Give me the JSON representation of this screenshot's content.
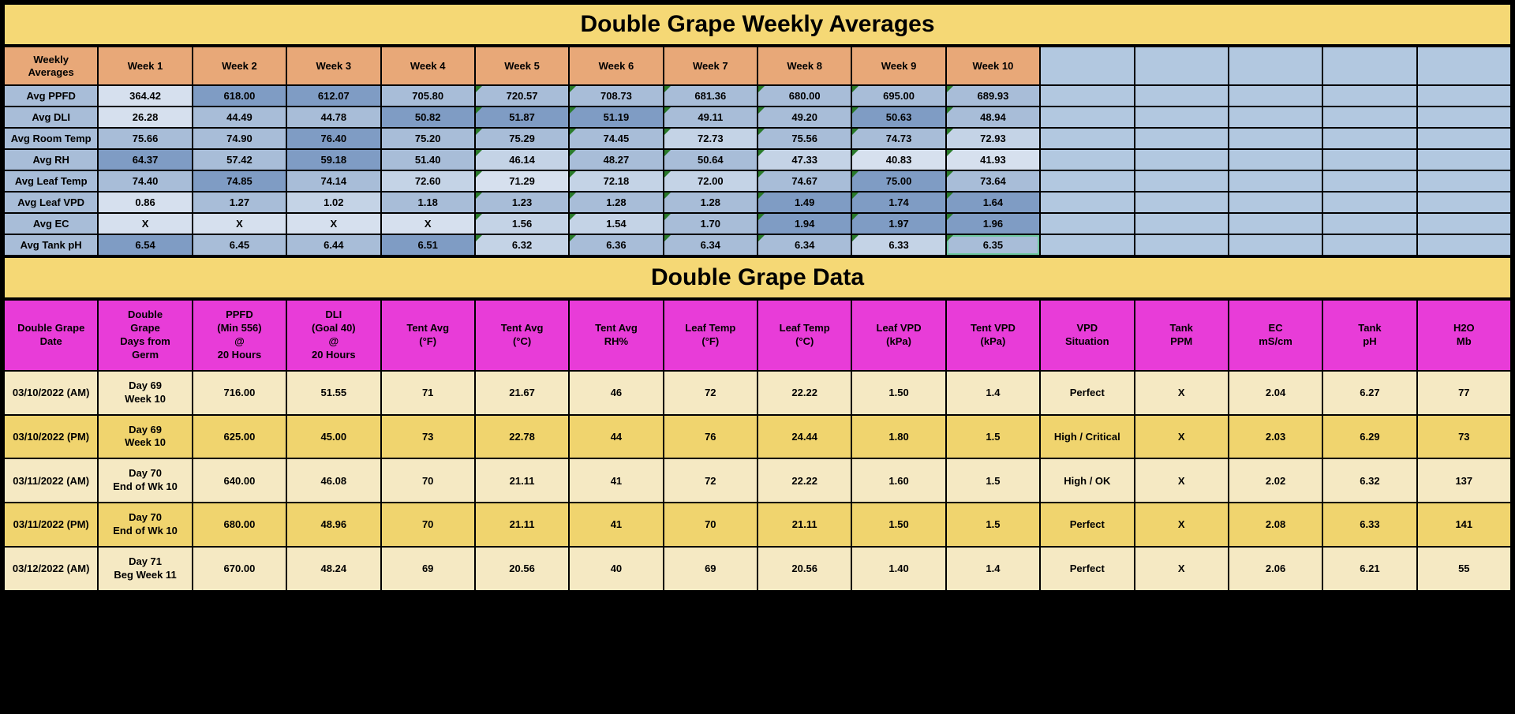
{
  "titles": {
    "weekly": "Double Grape Weekly Averages",
    "data": "Double Grape Data"
  },
  "weekly": {
    "corner": "Weekly Averages",
    "weeks": [
      "Week 1",
      "Week 2",
      "Week 3",
      "Week 4",
      "Week 5",
      "Week 6",
      "Week 7",
      "Week 8",
      "Week 9",
      "Week 10"
    ],
    "blankCols": 5,
    "rows": [
      {
        "label": "Avg PPFD",
        "vals": [
          "364.42",
          "618.00",
          "612.07",
          "705.80",
          "720.57",
          "708.73",
          "681.36",
          "680.00",
          "695.00",
          "689.93"
        ],
        "marks": [
          4,
          5,
          6,
          7,
          8,
          9
        ],
        "shades": [
          "s-pale",
          "s-dark",
          "s-dark",
          "s-mid",
          "s-mid",
          "s-mid",
          "s-mid",
          "s-mid",
          "s-mid",
          "s-mid"
        ]
      },
      {
        "label": "Avg DLI",
        "vals": [
          "26.28",
          "44.49",
          "44.78",
          "50.82",
          "51.87",
          "51.19",
          "49.11",
          "49.20",
          "50.63",
          "48.94"
        ],
        "marks": [
          4,
          5,
          6,
          7,
          8,
          9
        ],
        "shades": [
          "s-pale",
          "s-mid",
          "s-mid",
          "s-dark",
          "s-dark",
          "s-dark",
          "s-mid",
          "s-mid",
          "s-dark",
          "s-mid"
        ]
      },
      {
        "label": "Avg Room Temp",
        "vals": [
          "75.66",
          "74.90",
          "76.40",
          "75.20",
          "75.29",
          "74.45",
          "72.73",
          "75.56",
          "74.73",
          "72.93"
        ],
        "marks": [
          4,
          5,
          6,
          7,
          8,
          9
        ],
        "shades": [
          "s-mid",
          "s-mid",
          "s-dark",
          "s-mid",
          "s-mid",
          "s-mid",
          "s-light",
          "s-mid",
          "s-mid",
          "s-light"
        ]
      },
      {
        "label": "Avg RH",
        "vals": [
          "64.37",
          "57.42",
          "59.18",
          "51.40",
          "46.14",
          "48.27",
          "50.64",
          "47.33",
          "40.83",
          "41.93"
        ],
        "marks": [
          4,
          5,
          6,
          7,
          8,
          9
        ],
        "shades": [
          "s-dark",
          "s-mid",
          "s-dark",
          "s-mid",
          "s-light",
          "s-mid",
          "s-mid",
          "s-light",
          "s-pale",
          "s-pale"
        ]
      },
      {
        "label": "Avg Leaf Temp",
        "vals": [
          "74.40",
          "74.85",
          "74.14",
          "72.60",
          "71.29",
          "72.18",
          "72.00",
          "74.67",
          "75.00",
          "73.64"
        ],
        "marks": [
          4,
          5,
          6,
          7,
          8,
          9
        ],
        "shades": [
          "s-mid",
          "s-dark",
          "s-mid",
          "s-light",
          "s-pale",
          "s-light",
          "s-light",
          "s-mid",
          "s-dark",
          "s-mid"
        ]
      },
      {
        "label": "Avg Leaf VPD",
        "vals": [
          "0.86",
          "1.27",
          "1.02",
          "1.18",
          "1.23",
          "1.28",
          "1.28",
          "1.49",
          "1.74",
          "1.64"
        ],
        "marks": [
          4,
          5,
          6,
          7,
          8,
          9
        ],
        "shades": [
          "s-pale",
          "s-mid",
          "s-light",
          "s-mid",
          "s-mid",
          "s-mid",
          "s-mid",
          "s-dark",
          "s-dark",
          "s-dark"
        ]
      },
      {
        "label": "Avg EC",
        "vals": [
          "X",
          "X",
          "X",
          "X",
          "1.56",
          "1.54",
          "1.70",
          "1.94",
          "1.97",
          "1.96"
        ],
        "marks": [
          4,
          5,
          6,
          7,
          8,
          9
        ],
        "shades": [
          "s-pale",
          "s-pale",
          "s-pale",
          "s-pale",
          "s-light",
          "s-light",
          "s-mid",
          "s-dark",
          "s-dark",
          "s-dark"
        ]
      },
      {
        "label": "Avg Tank pH",
        "vals": [
          "6.54",
          "6.45",
          "6.44",
          "6.51",
          "6.32",
          "6.36",
          "6.34",
          "6.34",
          "6.33",
          "6.35"
        ],
        "marks": [
          4,
          5,
          6,
          7,
          8,
          9
        ],
        "shades": [
          "s-dark",
          "s-mid",
          "s-mid",
          "s-dark",
          "s-light",
          "s-mid",
          "s-mid",
          "s-mid",
          "s-light",
          "s-mid"
        ],
        "selected": 9
      }
    ]
  },
  "dataTable": {
    "headers": [
      "Double Grape Date",
      "Double Grape Days from Germ",
      "PPFD (Min 556) @ 20 Hours",
      "DLI (Goal 40) @ 20 Hours",
      "Tent Avg (°F)",
      "Tent Avg (°C)",
      "Tent Avg RH%",
      "Leaf Temp (°F)",
      "Leaf Temp (°C)",
      "Leaf VPD (kPa)",
      "Tent VPD (kPa)",
      "VPD Situation",
      "Tank PPM",
      "EC mS/cm",
      "Tank pH",
      "H2O Mb"
    ],
    "rows": [
      {
        "tone": "cr",
        "date": "03/10/2022 (AM)",
        "days": "Day 69\nWeek 10",
        "cells": [
          "716.00",
          "51.55",
          "71",
          "21.67",
          "46",
          "72",
          "22.22",
          "1.50",
          "1.4",
          "Perfect",
          "X",
          "2.04",
          "6.27",
          "77"
        ]
      },
      {
        "tone": "yl",
        "date": "03/10/2022 (PM)",
        "days": "Day 69\nWeek 10",
        "cells": [
          "625.00",
          "45.00",
          "73",
          "22.78",
          "44",
          "76",
          "24.44",
          "1.80",
          "1.5",
          "High / Critical",
          "X",
          "2.03",
          "6.29",
          "73"
        ]
      },
      {
        "tone": "cr",
        "date": "03/11/2022 (AM)",
        "days": "Day 70\nEnd of Wk 10",
        "cells": [
          "640.00",
          "46.08",
          "70",
          "21.11",
          "41",
          "72",
          "22.22",
          "1.60",
          "1.5",
          "High / OK",
          "X",
          "2.02",
          "6.32",
          "137"
        ]
      },
      {
        "tone": "yl",
        "date": "03/11/2022 (PM)",
        "days": "Day 70\nEnd of Wk 10",
        "cells": [
          "680.00",
          "48.96",
          "70",
          "21.11",
          "41",
          "70",
          "21.11",
          "1.50",
          "1.5",
          "Perfect",
          "X",
          "2.08",
          "6.33",
          "141"
        ]
      },
      {
        "tone": "cr",
        "date": "03/12/2022 (AM)",
        "days": "Day 71\nBeg Week 11",
        "cells": [
          "670.00",
          "48.24",
          "69",
          "20.56",
          "40",
          "69",
          "20.56",
          "1.40",
          "1.4",
          "Perfect",
          "X",
          "2.06",
          "6.21",
          "55"
        ]
      }
    ]
  }
}
